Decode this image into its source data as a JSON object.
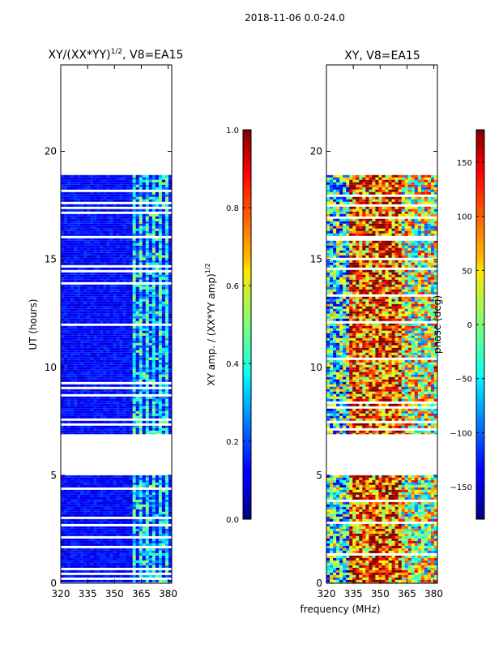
{
  "figure_title": "2018-11-06 0.0-24.0",
  "xlabel_shared": "frequency (MHz)",
  "chart_data": [
    {
      "type": "heatmap",
      "title_main": "XY/(XX*YY)",
      "title_sup": "1/2",
      "title_rest": ", V8=EA15",
      "xlabel": "",
      "ylabel": "UT (hours)",
      "xlim": [
        320,
        382
      ],
      "ylim": [
        0,
        24
      ],
      "xticks": [
        320,
        335,
        350,
        365,
        380
      ],
      "yticks": [
        0,
        5,
        10,
        15,
        20
      ],
      "coverage_hours": [
        [
          0.0,
          5.0
        ],
        [
          6.9,
          18.9
        ]
      ],
      "colorbar": {
        "label_main": "XY amp. / (XX*YY amp)",
        "label_sup": "1/2",
        "range": [
          0.0,
          1.0
        ],
        "ticks": [
          "0.0",
          "0.2",
          "0.4",
          "0.6",
          "0.8",
          "1.0"
        ],
        "colormap": "jet"
      }
    },
    {
      "type": "heatmap",
      "title": "XY, V8=EA15",
      "xlabel": "frequency (MHz)",
      "ylabel": "",
      "xlim": [
        320,
        382
      ],
      "ylim": [
        0,
        24
      ],
      "xticks": [
        320,
        335,
        350,
        365,
        380
      ],
      "yticks": [
        0,
        5,
        10,
        15,
        20
      ],
      "coverage_hours": [
        [
          0.0,
          5.0
        ],
        [
          6.9,
          18.9
        ]
      ],
      "colorbar": {
        "label": "phase (deg)",
        "range": [
          -180,
          180
        ],
        "ticks": [
          "−150",
          "−100",
          "−50",
          "0",
          "50",
          "100",
          "150"
        ],
        "colormap": "jet"
      }
    }
  ]
}
